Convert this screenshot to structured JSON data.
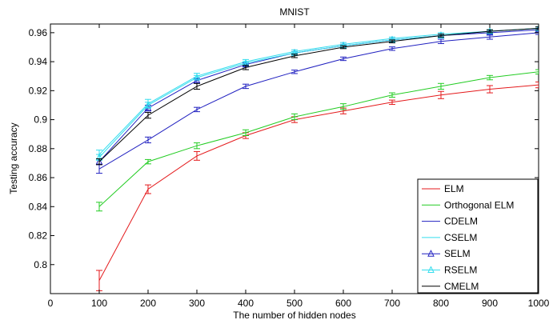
{
  "chart_data": {
    "type": "line",
    "title": "MNIST",
    "xlabel": "The number of hidden nodes",
    "ylabel": "Testing accuracy",
    "xlim": [
      0,
      1000
    ],
    "ylim": [
      0.78,
      0.966
    ],
    "xticks": [
      0,
      100,
      200,
      300,
      400,
      500,
      600,
      700,
      800,
      900,
      1000
    ],
    "yticks": [
      0.8,
      0.82,
      0.84,
      0.86,
      0.88,
      0.9,
      0.92,
      0.94,
      0.96
    ],
    "ytick_labels": [
      "0.8",
      "0.82",
      "0.84",
      "0.86",
      "0.88",
      "0.9",
      "0.92",
      "0.94",
      "0.96"
    ],
    "grid": false,
    "legend_position": "bottom-right",
    "x": [
      100,
      200,
      300,
      400,
      500,
      600,
      700,
      800,
      900,
      1000
    ],
    "series": [
      {
        "name": "ELM",
        "color": "#e41a1c",
        "marker": "none",
        "values": [
          0.789,
          0.852,
          0.875,
          0.889,
          0.9,
          0.906,
          0.912,
          0.917,
          0.921,
          0.924
        ],
        "errors": [
          0.007,
          0.003,
          0.003,
          0.002,
          0.002,
          0.002,
          0.0015,
          0.0025,
          0.0025,
          0.002
        ]
      },
      {
        "name": "Orthogonal ELM",
        "color": "#22cc22",
        "marker": "none",
        "values": [
          0.84,
          0.871,
          0.882,
          0.891,
          0.902,
          0.909,
          0.917,
          0.923,
          0.929,
          0.933
        ],
        "errors": [
          0.003,
          0.0015,
          0.002,
          0.002,
          0.002,
          0.002,
          0.0015,
          0.002,
          0.0015,
          0.0015
        ]
      },
      {
        "name": "CDELM",
        "color": "#2020c0",
        "marker": "none",
        "values": [
          0.866,
          0.886,
          0.907,
          0.923,
          0.933,
          0.942,
          0.949,
          0.954,
          0.957,
          0.96
        ],
        "errors": [
          0.003,
          0.002,
          0.0015,
          0.0015,
          0.0012,
          0.0012,
          0.0012,
          0.0015,
          0.0015,
          0.0012
        ]
      },
      {
        "name": "CSELM",
        "color": "#33ddee",
        "marker": "none",
        "values": [
          0.876,
          0.911,
          0.93,
          0.94,
          0.947,
          0.952,
          0.956,
          0.959,
          0.961,
          0.963
        ],
        "errors": [
          0.003,
          0.003,
          0.002,
          0.0015,
          0.0012,
          0.0012,
          0.001,
          0.001,
          0.001,
          0.001
        ]
      },
      {
        "name": "SELM",
        "color": "#2020c0",
        "marker": "triangle",
        "values": [
          0.871,
          0.908,
          0.927,
          0.938,
          0.946,
          0.951,
          0.955,
          0.958,
          0.96,
          0.962
        ],
        "errors": [
          0.002,
          0.002,
          0.0015,
          0.0012,
          0.001,
          0.001,
          0.001,
          0.001,
          0.001,
          0.001
        ]
      },
      {
        "name": "RSELM",
        "color": "#33ddee",
        "marker": "triangle",
        "values": [
          0.874,
          0.91,
          0.929,
          0.939,
          0.946,
          0.951,
          0.955,
          0.958,
          0.961,
          0.963
        ],
        "errors": [
          0.002,
          0.002,
          0.0015,
          0.0012,
          0.001,
          0.001,
          0.001,
          0.001,
          0.001,
          0.001
        ]
      },
      {
        "name": "CMELM",
        "color": "#000000",
        "marker": "none",
        "values": [
          0.871,
          0.903,
          0.923,
          0.936,
          0.944,
          0.95,
          0.954,
          0.958,
          0.961,
          0.963
        ],
        "errors": [
          0.002,
          0.002,
          0.002,
          0.0015,
          0.0012,
          0.001,
          0.001,
          0.001,
          0.001,
          0.001
        ]
      }
    ]
  }
}
